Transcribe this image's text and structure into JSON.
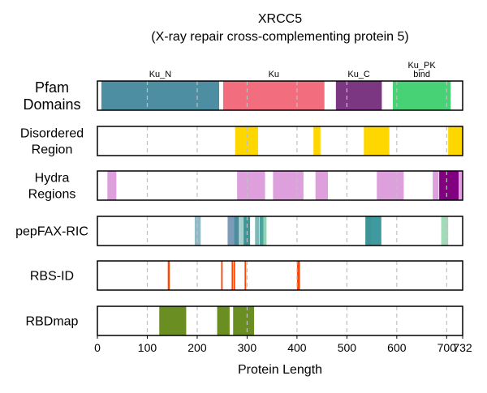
{
  "chart_data": {
    "type": "track",
    "title": "XRCC5",
    "subtitle": "(X-ray repair cross-complementing protein 5)",
    "xlabel": "Protein Length",
    "xlim": [
      0,
      732
    ],
    "xticks": [
      0,
      100,
      200,
      300,
      400,
      500,
      600,
      700,
      732
    ],
    "grid_x": [
      100,
      200,
      300,
      400,
      500,
      600,
      700
    ],
    "tracks": [
      {
        "name": "Pfam Domains",
        "label_lines": [
          "Pfam",
          "Domains"
        ],
        "segments": [
          {
            "start": 8,
            "end": 244,
            "color": "#4e8ea2",
            "label": [
              "Ku_N"
            ]
          },
          {
            "start": 252,
            "end": 455,
            "color": "#f26d7d",
            "label": [
              "Ku"
            ]
          },
          {
            "start": 478,
            "end": 570,
            "color": "#7b3782",
            "label": [
              "Ku_C"
            ]
          },
          {
            "start": 592,
            "end": 708,
            "color": "#47d375",
            "label": [
              "Ku_PK",
              "bind"
            ]
          }
        ]
      },
      {
        "name": "Disordered Region",
        "label_lines": [
          "Disordered",
          "Region"
        ],
        "segments": [
          {
            "start": 276,
            "end": 322,
            "color": "#ffd700"
          },
          {
            "start": 433,
            "end": 447,
            "color": "#ffd700"
          },
          {
            "start": 534,
            "end": 585,
            "color": "#ffd700"
          },
          {
            "start": 703,
            "end": 732,
            "color": "#ffd700"
          }
        ]
      },
      {
        "name": "Hydra Regions",
        "label_lines": [
          "Hydra",
          "Regions"
        ],
        "segments": [
          {
            "start": 20,
            "end": 38,
            "color": "#dda0dd"
          },
          {
            "start": 280,
            "end": 336,
            "color": "#dda0dd"
          },
          {
            "start": 352,
            "end": 413,
            "color": "#dda0dd"
          },
          {
            "start": 437,
            "end": 462,
            "color": "#dda0dd"
          },
          {
            "start": 560,
            "end": 614,
            "color": "#dda0dd"
          },
          {
            "start": 672,
            "end": 684,
            "color": "#dda0dd"
          },
          {
            "start": 685,
            "end": 724,
            "color": "#800080"
          },
          {
            "start": 724,
            "end": 731,
            "color": "#dda0dd"
          }
        ]
      },
      {
        "name": "pepFAX-RIC",
        "label_lines": [
          "pepFAX-RIC"
        ],
        "segments": [
          {
            "start": 195,
            "end": 207,
            "color": "#8fbac6"
          },
          {
            "start": 261,
            "end": 274,
            "color": "#7d9cb9"
          },
          {
            "start": 274,
            "end": 284,
            "color": "#4a8fa0"
          },
          {
            "start": 285,
            "end": 293,
            "color": "#a8cfc8"
          },
          {
            "start": 293,
            "end": 306,
            "color": "#3d9596"
          },
          {
            "start": 316,
            "end": 324,
            "color": "#7fb8b8"
          },
          {
            "start": 325,
            "end": 333,
            "color": "#4aa59e"
          },
          {
            "start": 333,
            "end": 339,
            "color": "#8fd6b0"
          },
          {
            "start": 537,
            "end": 549,
            "color": "#3d9596"
          },
          {
            "start": 549,
            "end": 569,
            "color": "#3f9aa0"
          },
          {
            "start": 689,
            "end": 703,
            "color": "#a1dcb8"
          }
        ]
      },
      {
        "name": "RBS-ID",
        "label_lines": [
          "RBS-ID"
        ],
        "segments": [
          {
            "start": 141,
            "end": 145,
            "color": "#ff4500"
          },
          {
            "start": 248,
            "end": 251,
            "color": "#ff4500"
          },
          {
            "start": 269,
            "end": 272,
            "color": "#ff4500"
          },
          {
            "start": 273,
            "end": 276,
            "color": "#ff4500"
          },
          {
            "start": 295,
            "end": 298,
            "color": "#ff4500"
          },
          {
            "start": 400,
            "end": 406,
            "color": "#ff4500"
          }
        ]
      },
      {
        "name": "RBDmap",
        "label_lines": [
          "RBDmap"
        ],
        "segments": [
          {
            "start": 124,
            "end": 178,
            "color": "#6b8e23"
          },
          {
            "start": 240,
            "end": 265,
            "color": "#6b8e23"
          },
          {
            "start": 272,
            "end": 314,
            "color": "#6b8e23"
          }
        ]
      }
    ]
  }
}
